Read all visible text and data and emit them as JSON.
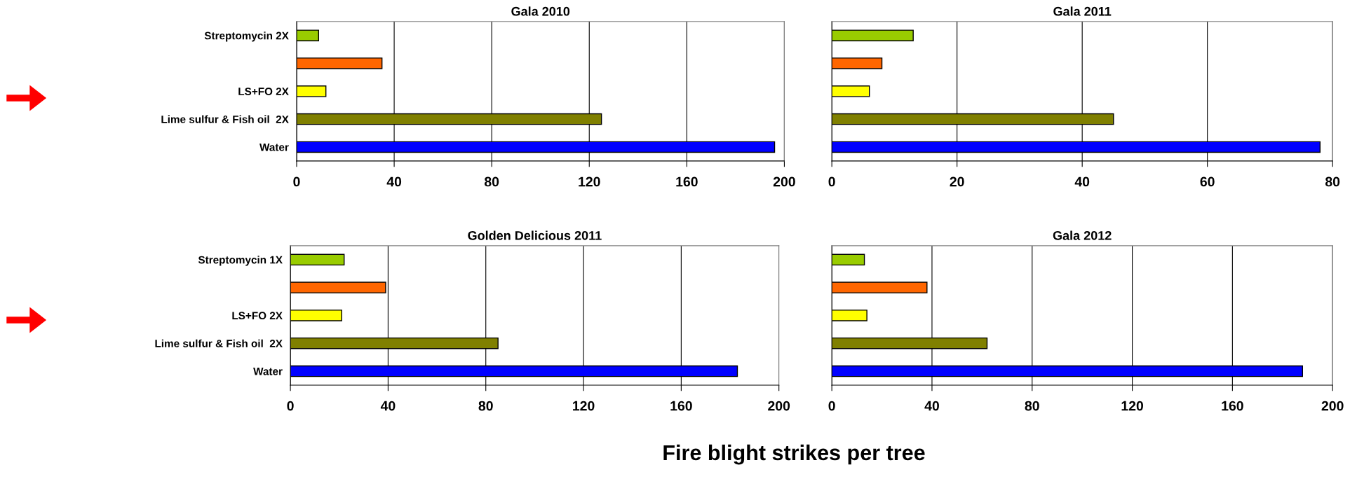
{
  "chart_data": [
    {
      "type": "bar",
      "orientation": "horizontal",
      "title": "Gala 2010",
      "categories": [
        "Streptomycin 2X",
        null,
        "LS+FO 2X",
        "Lime sulfur & Fish oil  2X",
        "Water"
      ],
      "values": [
        9,
        35,
        12,
        125,
        196
      ],
      "colors": [
        "#99cc00",
        "#ff6600",
        "#ffff00",
        "#808000",
        "#0000ff"
      ],
      "xlim": [
        0,
        200
      ],
      "xticks": [
        0,
        40,
        80,
        120,
        160,
        200
      ],
      "grid": "x"
    },
    {
      "type": "bar",
      "orientation": "horizontal",
      "title": "Gala 2011",
      "categories": [
        null,
        null,
        null,
        null,
        null
      ],
      "values": [
        13,
        8,
        6,
        45,
        78
      ],
      "colors": [
        "#99cc00",
        "#ff6600",
        "#ffff00",
        "#808000",
        "#0000ff"
      ],
      "xlim": [
        0,
        80
      ],
      "xticks": [
        0,
        20,
        40,
        60,
        80
      ],
      "grid": "x",
      "tick_labels": "x"
    },
    {
      "type": "bar",
      "orientation": "horizontal",
      "title": "Golden Delicious 2011",
      "categories": [
        "Streptomycin 1X",
        null,
        "LS+FO 2X",
        "Lime sulfur & Fish oil  2X",
        "Water"
      ],
      "values": [
        22,
        39,
        21,
        85,
        183
      ],
      "colors": [
        "#99cc00",
        "#ff6600",
        "#ffff00",
        "#808000",
        "#0000ff"
      ],
      "xlim": [
        0,
        200
      ],
      "xticks": [
        0,
        40,
        80,
        120,
        160,
        200
      ],
      "grid": "x"
    },
    {
      "type": "bar",
      "orientation": "horizontal",
      "title": "Gala 2012",
      "categories": [
        null,
        null,
        null,
        null,
        null
      ],
      "values": [
        13,
        38,
        14,
        62,
        188
      ],
      "colors": [
        "#99cc00",
        "#ff6600",
        "#ffff00",
        "#808000",
        "#0000ff"
      ],
      "xlim": [
        0,
        200
      ],
      "xticks": [
        0,
        40,
        80,
        120,
        160,
        200
      ],
      "grid": "x",
      "tick_labels": "x",
      "xlabel": "Fire blight strikes per tree"
    }
  ]
}
